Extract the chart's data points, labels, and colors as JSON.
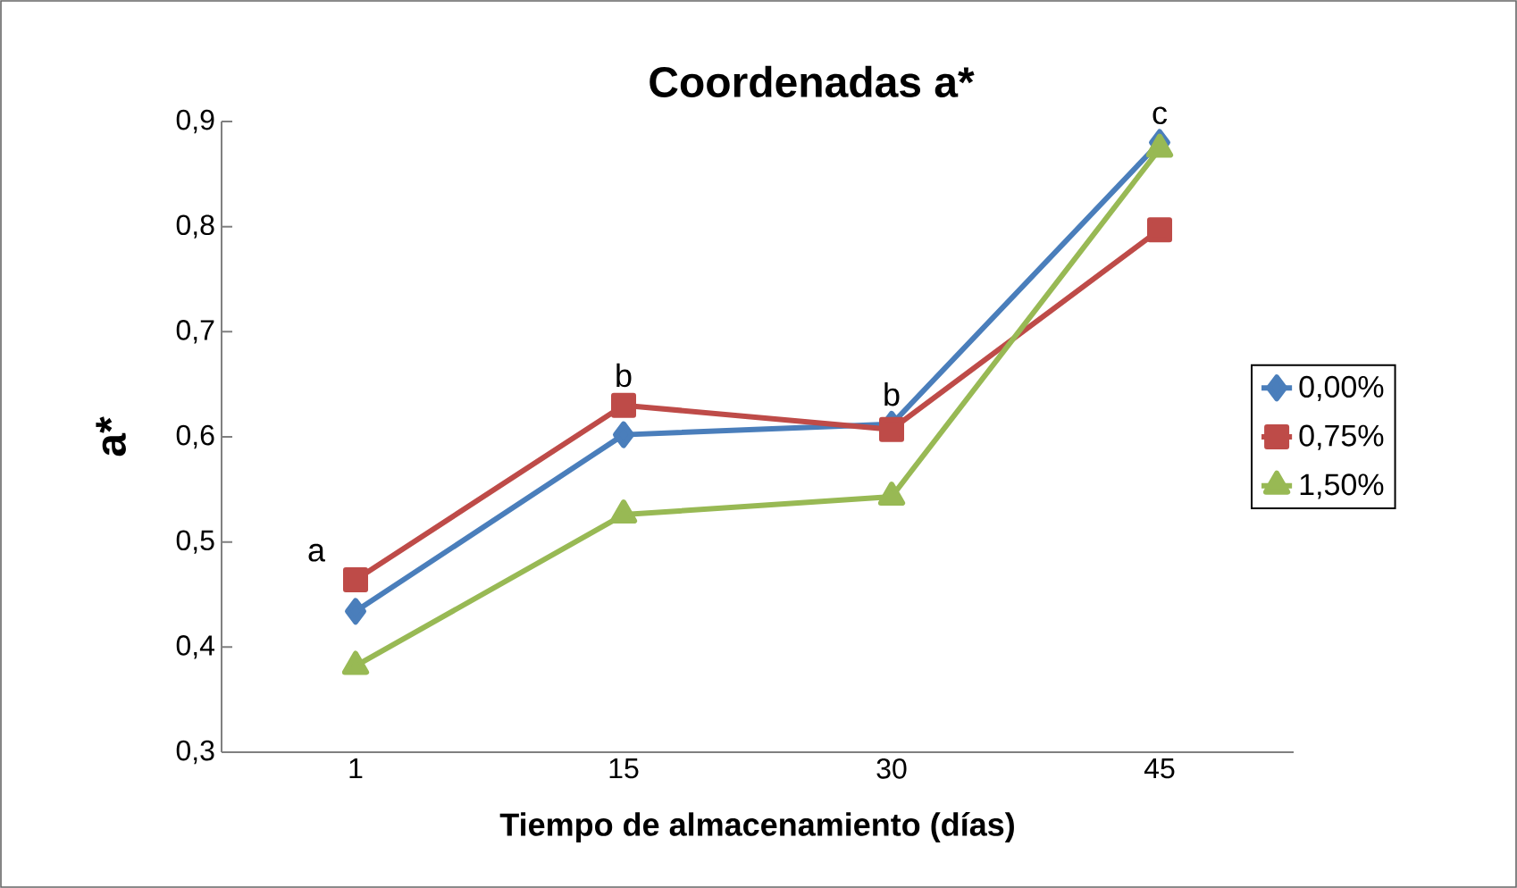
{
  "chart_data": {
    "type": "line",
    "title": "Coordenadas a*",
    "xlabel": "Tiempo de almacenamiento (días)",
    "ylabel": "a*",
    "categories": [
      "1",
      "15",
      "30",
      "45"
    ],
    "series": [
      {
        "name": "0,00%",
        "color": "#4a7ebb",
        "marker": "diamond",
        "values": [
          0.434,
          0.602,
          0.612,
          0.88
        ]
      },
      {
        "name": "0,75%",
        "color": "#be4b48",
        "marker": "square",
        "values": [
          0.464,
          0.63,
          0.607,
          0.797
        ]
      },
      {
        "name": "1,50%",
        "color": "#98b954",
        "marker": "triangle",
        "values": [
          0.382,
          0.526,
          0.543,
          0.874
        ]
      }
    ],
    "ylim": [
      0.3,
      0.9
    ],
    "yticks": [
      {
        "value": 0.3,
        "label": "0,3"
      },
      {
        "value": 0.4,
        "label": "0,4"
      },
      {
        "value": 0.5,
        "label": "0,5"
      },
      {
        "value": 0.6,
        "label": "0,6"
      },
      {
        "value": 0.7,
        "label": "0,7"
      },
      {
        "value": 0.8,
        "label": "0,8"
      },
      {
        "value": 0.9,
        "label": "0,9"
      }
    ],
    "annotations": [
      "a",
      "b",
      "b",
      "c"
    ],
    "legend": "right",
    "grid": false
  }
}
